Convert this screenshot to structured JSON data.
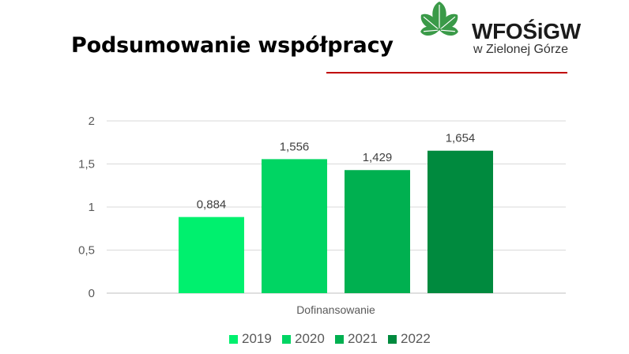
{
  "header": {
    "title": "Podsumowanie współpracy",
    "logo_name": "WFOŚiGW",
    "logo_sub": "w Zielonej Górze",
    "logo_color": "#3a9a48",
    "rule_color": "#c00000"
  },
  "chart_data": {
    "type": "bar",
    "title": "",
    "categories": [
      "Dofinansowanie"
    ],
    "series": [
      {
        "name": "2019",
        "values": [
          0.884
        ],
        "color": "#00f06e",
        "label": "0,884"
      },
      {
        "name": "2020",
        "values": [
          1.556
        ],
        "color": "#00d563",
        "label": "1,556"
      },
      {
        "name": "2021",
        "values": [
          1.429
        ],
        "color": "#00b050",
        "label": "1,429"
      },
      {
        "name": "2022",
        "values": [
          1.654
        ],
        "color": "#008a3e",
        "label": "1,654"
      }
    ],
    "xlabel": "",
    "ylabel": "",
    "ylim": [
      0,
      2
    ],
    "yticks": [
      {
        "value": 0,
        "label": "0"
      },
      {
        "value": 0.5,
        "label": "0,5"
      },
      {
        "value": 1,
        "label": "1"
      },
      {
        "value": 1.5,
        "label": "1,5"
      },
      {
        "value": 2,
        "label": "2"
      }
    ],
    "grid": true,
    "legend_position": "bottom"
  }
}
